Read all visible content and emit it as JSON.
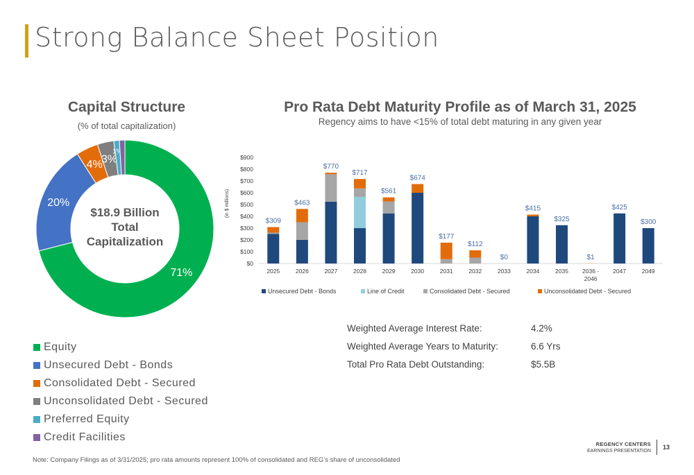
{
  "page": {
    "title": "Strong Balance Sheet Position",
    "footer_note": "Note: Company Filings as of 3/31/2025; pro rata amounts represent 100% of consolidated and REG’s share of unconsolidated",
    "brand_line1": "REGENCY CENTERS",
    "brand_line2": "EARNINGS PRESENTATION",
    "page_number": "13",
    "accent_color": "#D4A017"
  },
  "capital_structure": {
    "title": "Capital Structure",
    "subtitle": "(% of total capitalization)",
    "center_text": [
      "$18.9 Billion",
      "Total",
      "Capitalization"
    ]
  },
  "maturity": {
    "title": "Pro Rata Debt Maturity Profile as of March 31, 2025",
    "subtitle": "Regency aims to have <15% of total debt maturing in any given year"
  },
  "stats": [
    {
      "label": "Weighted Average Interest Rate:",
      "value": "4.2%"
    },
    {
      "label": "Weighted Average Years to Maturity:",
      "value": "6.6 Yrs"
    },
    {
      "label": "Total Pro Rata Debt Outstanding:",
      "value": "$5.5B"
    }
  ],
  "chart_data": [
    {
      "type": "pie",
      "title": "Capital Structure",
      "subtitle": "(% of total capitalization)",
      "center_label": "$18.9 Billion Total Capitalization",
      "categories": [
        "Equity",
        "Unsecured Debt - Bonds",
        "Consolidated Debt - Secured",
        "Unconsolidated Debt - Secured",
        "Preferred Equity",
        "Credit Facilities"
      ],
      "values": [
        71,
        20,
        4,
        3,
        1,
        1
      ],
      "labels": [
        "71%",
        "20%",
        "4%",
        "3%",
        "1%",
        "1%"
      ],
      "colors": [
        "#00B050",
        "#4472C4",
        "#E36C0A",
        "#7F7F7F",
        "#4BACC6",
        "#8064A2"
      ],
      "legend_position": "bottom"
    },
    {
      "type": "bar",
      "stacked": true,
      "title": "Pro Rata Debt Maturity Profile as of March 31, 2025",
      "subtitle": "Regency aims to have <15% of total debt maturing in any given year",
      "ylabel": "(in $ millions)",
      "ylim": [
        0,
        900
      ],
      "yticks": [
        "$0",
        "$100",
        "$200",
        "$300",
        "$400",
        "$500",
        "$600",
        "$700",
        "$800",
        "$900"
      ],
      "categories": [
        "2025",
        "2026",
        "2027",
        "2028",
        "2029",
        "2030",
        "2031",
        "2032",
        "2033",
        "2034",
        "2035",
        "2036 - 2046",
        "2047",
        "2049"
      ],
      "totals": [
        "$309",
        "$463",
        "$770",
        "$717",
        "$561",
        "$674",
        "$177",
        "$112",
        "$0",
        "$415",
        "$325",
        "$1",
        "$425",
        "$300"
      ],
      "series": [
        {
          "name": "Unsecured Debt - Bonds",
          "color": "#1F497D",
          "values": [
            250,
            200,
            525,
            300,
            425,
            600,
            0,
            0,
            0,
            400,
            325,
            0,
            425,
            300
          ]
        },
        {
          "name": "Line of Credit",
          "color": "#93CDDD",
          "values": [
            0,
            0,
            0,
            265,
            0,
            0,
            0,
            0,
            0,
            0,
            0,
            0,
            0,
            0
          ]
        },
        {
          "name": "Consolidated Debt - Secured",
          "color": "#A6A6A6",
          "values": [
            12,
            150,
            232,
            72,
            101,
            0,
            37,
            50,
            0,
            0,
            0,
            0,
            0,
            0
          ]
        },
        {
          "name": "Unconsolidated Debt - Secured",
          "color": "#E36C0A",
          "values": [
            47,
            113,
            13,
            80,
            35,
            74,
            140,
            62,
            0,
            15,
            0,
            1,
            0,
            0
          ]
        }
      ],
      "legend_position": "bottom",
      "grid": false
    }
  ]
}
